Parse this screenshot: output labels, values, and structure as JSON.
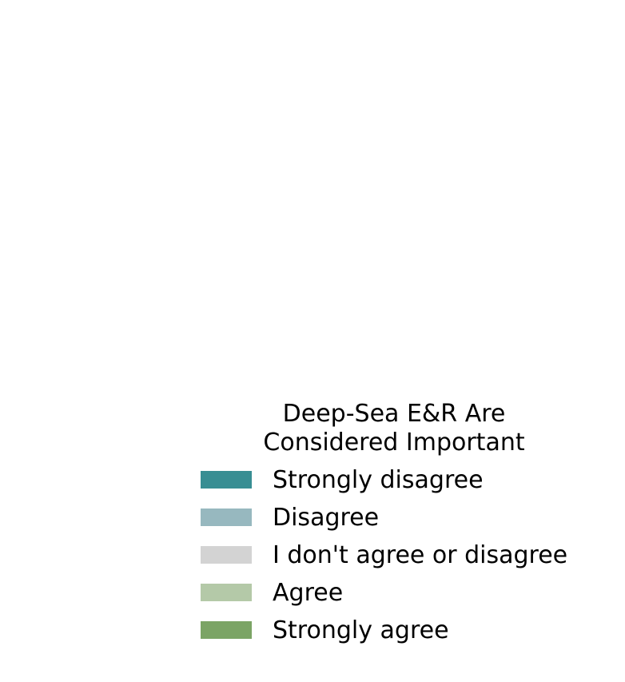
{
  "chart_data": {
    "type": "bar",
    "title": "",
    "legend": {
      "title": "Deep-Sea E&R Are\nConsidered Important",
      "placement": "bottom-right",
      "entries": [
        {
          "label": "Strongly disagree",
          "color": "#388e93"
        },
        {
          "label": "Disagree",
          "color": "#97b8bf"
        },
        {
          "label": "I don't agree or disagree",
          "color": "#d3d3d3"
        },
        {
          "label": "Agree",
          "color": "#b4c9a8"
        },
        {
          "label": "Strongly agree",
          "color": "#7ba465"
        }
      ]
    },
    "series": [],
    "categories": []
  }
}
